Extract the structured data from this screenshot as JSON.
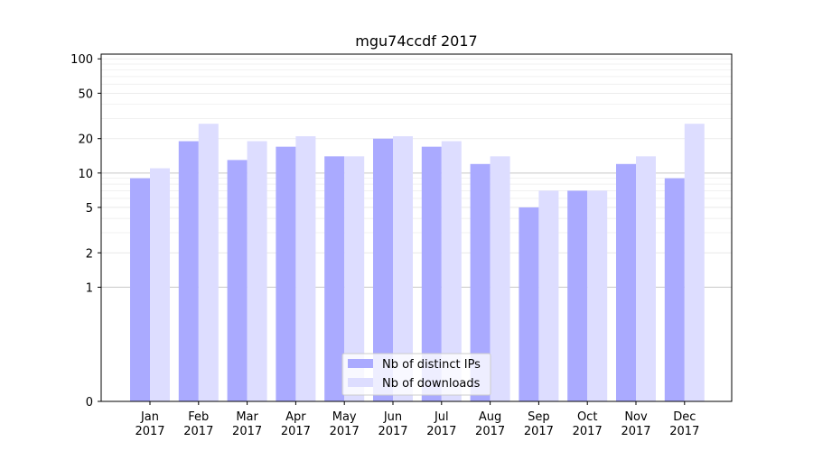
{
  "chart_data": {
    "type": "bar",
    "title": "mgu74ccdf 2017",
    "xlabel": "",
    "ylabel": "",
    "yscale": "symlog",
    "ylim": [
      0,
      110
    ],
    "yticks": [
      0,
      1,
      2,
      5,
      10,
      20,
      50,
      100
    ],
    "categories": [
      "Jan\n2017",
      "Feb\n2017",
      "Mar\n2017",
      "Apr\n2017",
      "May\n2017",
      "Jun\n2017",
      "Jul\n2017",
      "Aug\n2017",
      "Sep\n2017",
      "Oct\n2017",
      "Nov\n2017",
      "Dec\n2017"
    ],
    "series": [
      {
        "name": "Nb of distinct IPs",
        "color": "#aaaaff",
        "values": [
          9,
          19,
          13,
          17,
          14,
          20,
          17,
          12,
          5,
          7,
          12,
          9
        ]
      },
      {
        "name": "Nb of downloads",
        "color": "#ddddff",
        "values": [
          11,
          27,
          19,
          21,
          14,
          21,
          19,
          14,
          7,
          7,
          14,
          27
        ]
      }
    ],
    "grid": true,
    "legend_position": "bottom-center"
  }
}
